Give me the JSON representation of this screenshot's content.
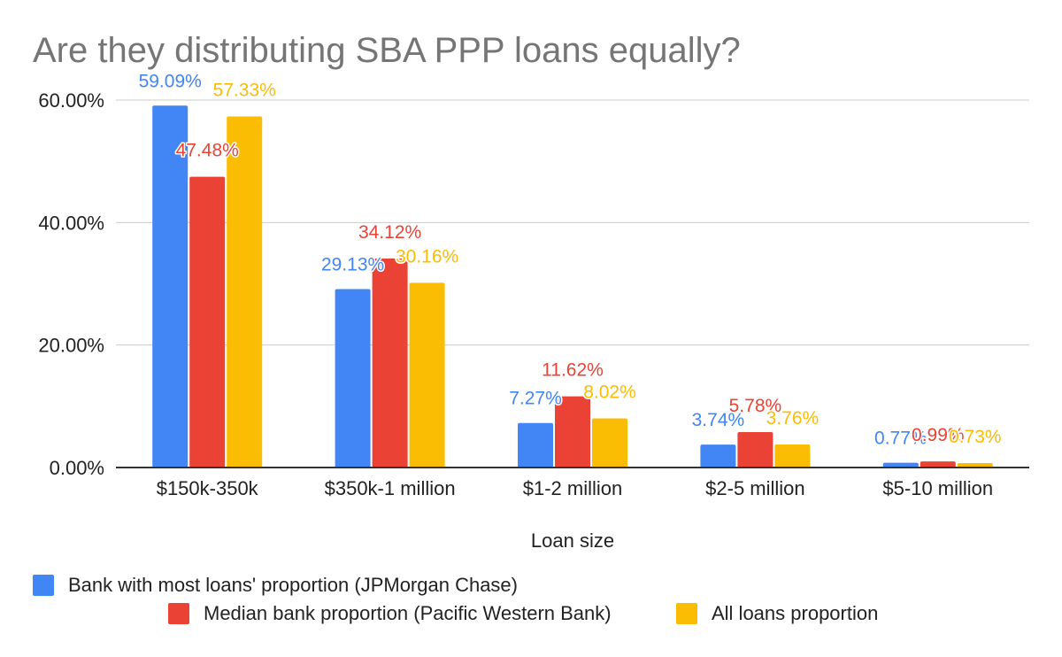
{
  "chart_data": {
    "type": "bar",
    "title": "Are they distributing SBA PPP loans equally?",
    "xlabel": "Loan size",
    "ylabel": "",
    "ylim": [
      0,
      60
    ],
    "y_ticks": [
      "0.00%",
      "20.00%",
      "40.00%",
      "60.00%"
    ],
    "y_tick_values": [
      0,
      20,
      40,
      60
    ],
    "grid": true,
    "legend_position": "bottom",
    "categories": [
      "$150k-350k",
      "$350k-1 million",
      "$1-2 million",
      "$2-5 million",
      "$5-10 million"
    ],
    "series": [
      {
        "name": "Bank with most loans' proportion (JPMorgan Chase)",
        "color": "#4285f4",
        "values": [
          59.09,
          29.13,
          7.27,
          3.74,
          0.77
        ],
        "labels": [
          "59.09%",
          "29.13%",
          "7.27%",
          "3.74%",
          "0.77%"
        ]
      },
      {
        "name": "Median bank proportion (Pacific Western Bank)",
        "color": "#ea4335",
        "values": [
          47.48,
          34.12,
          11.62,
          5.78,
          0.99
        ],
        "labels": [
          "47.48%",
          "34.12%",
          "11.62%",
          "5.78%",
          "0.99%"
        ]
      },
      {
        "name": "All loans proportion",
        "color": "#fbbc04",
        "values": [
          57.33,
          30.16,
          8.02,
          3.76,
          0.73
        ],
        "labels": [
          "57.33%",
          "30.16%",
          "8.02%",
          "3.76%",
          "0.73%"
        ]
      }
    ]
  }
}
